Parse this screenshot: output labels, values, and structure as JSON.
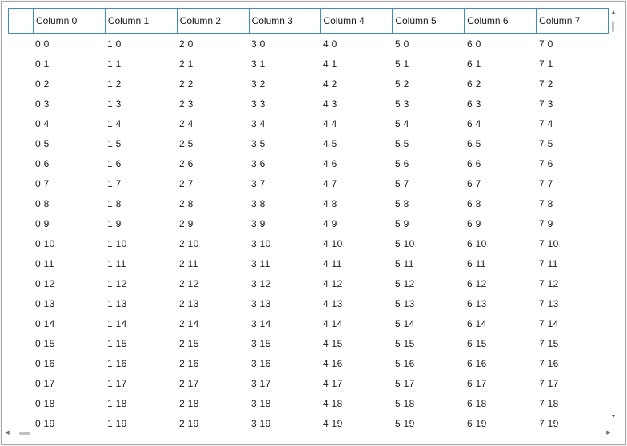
{
  "grid": {
    "columns": [
      "Column 0",
      "Column 1",
      "Column 2",
      "Column 3",
      "Column 4",
      "Column 5",
      "Column 6",
      "Column 7"
    ],
    "rows": [
      [
        "0 0",
        "1 0",
        "2 0",
        "3 0",
        "4 0",
        "5 0",
        "6 0",
        "7 0"
      ],
      [
        "0 1",
        "1 1",
        "2 1",
        "3 1",
        "4 1",
        "5 1",
        "6 1",
        "7 1"
      ],
      [
        "0 2",
        "1 2",
        "2 2",
        "3 2",
        "4 2",
        "5 2",
        "6 2",
        "7 2"
      ],
      [
        "0 3",
        "1 3",
        "2 3",
        "3 3",
        "4 3",
        "5 3",
        "6 3",
        "7 3"
      ],
      [
        "0 4",
        "1 4",
        "2 4",
        "3 4",
        "4 4",
        "5 4",
        "6 4",
        "7 4"
      ],
      [
        "0 5",
        "1 5",
        "2 5",
        "3 5",
        "4 5",
        "5 5",
        "6 5",
        "7 5"
      ],
      [
        "0 6",
        "1 6",
        "2 6",
        "3 6",
        "4 6",
        "5 6",
        "6 6",
        "7 6"
      ],
      [
        "0 7",
        "1 7",
        "2 7",
        "3 7",
        "4 7",
        "5 7",
        "6 7",
        "7 7"
      ],
      [
        "0 8",
        "1 8",
        "2 8",
        "3 8",
        "4 8",
        "5 8",
        "6 8",
        "7 8"
      ],
      [
        "0 9",
        "1 9",
        "2 9",
        "3 9",
        "4 9",
        "5 9",
        "6 9",
        "7 9"
      ],
      [
        "0 10",
        "1 10",
        "2 10",
        "3 10",
        "4 10",
        "5 10",
        "6 10",
        "7 10"
      ],
      [
        "0 11",
        "1 11",
        "2 11",
        "3 11",
        "4 11",
        "5 11",
        "6 11",
        "7 11"
      ],
      [
        "0 12",
        "1 12",
        "2 12",
        "3 12",
        "4 12",
        "5 12",
        "6 12",
        "7 12"
      ],
      [
        "0 13",
        "1 13",
        "2 13",
        "3 13",
        "4 13",
        "5 13",
        "6 13",
        "7 13"
      ],
      [
        "0 14",
        "1 14",
        "2 14",
        "3 14",
        "4 14",
        "5 14",
        "6 14",
        "7 14"
      ],
      [
        "0 15",
        "1 15",
        "2 15",
        "3 15",
        "4 15",
        "5 15",
        "6 15",
        "7 15"
      ],
      [
        "0 16",
        "1 16",
        "2 16",
        "3 16",
        "4 16",
        "5 16",
        "6 16",
        "7 16"
      ],
      [
        "0 17",
        "1 17",
        "2 17",
        "3 17",
        "4 17",
        "5 17",
        "6 17",
        "7 17"
      ],
      [
        "0 18",
        "1 18",
        "2 18",
        "3 18",
        "4 18",
        "5 18",
        "6 18",
        "7 18"
      ],
      [
        "0 19",
        "1 19",
        "2 19",
        "3 19",
        "4 19",
        "5 19",
        "6 19",
        "7 19"
      ]
    ]
  },
  "scrollbars": {
    "up_arrow": "▲",
    "down_arrow": "▼",
    "left_arrow": "◀",
    "right_arrow": "▶"
  },
  "colors": {
    "header_border": "#3a8fc9",
    "window_border": "#a9a9a9",
    "scroll_thumb": "#c2c2c2"
  }
}
